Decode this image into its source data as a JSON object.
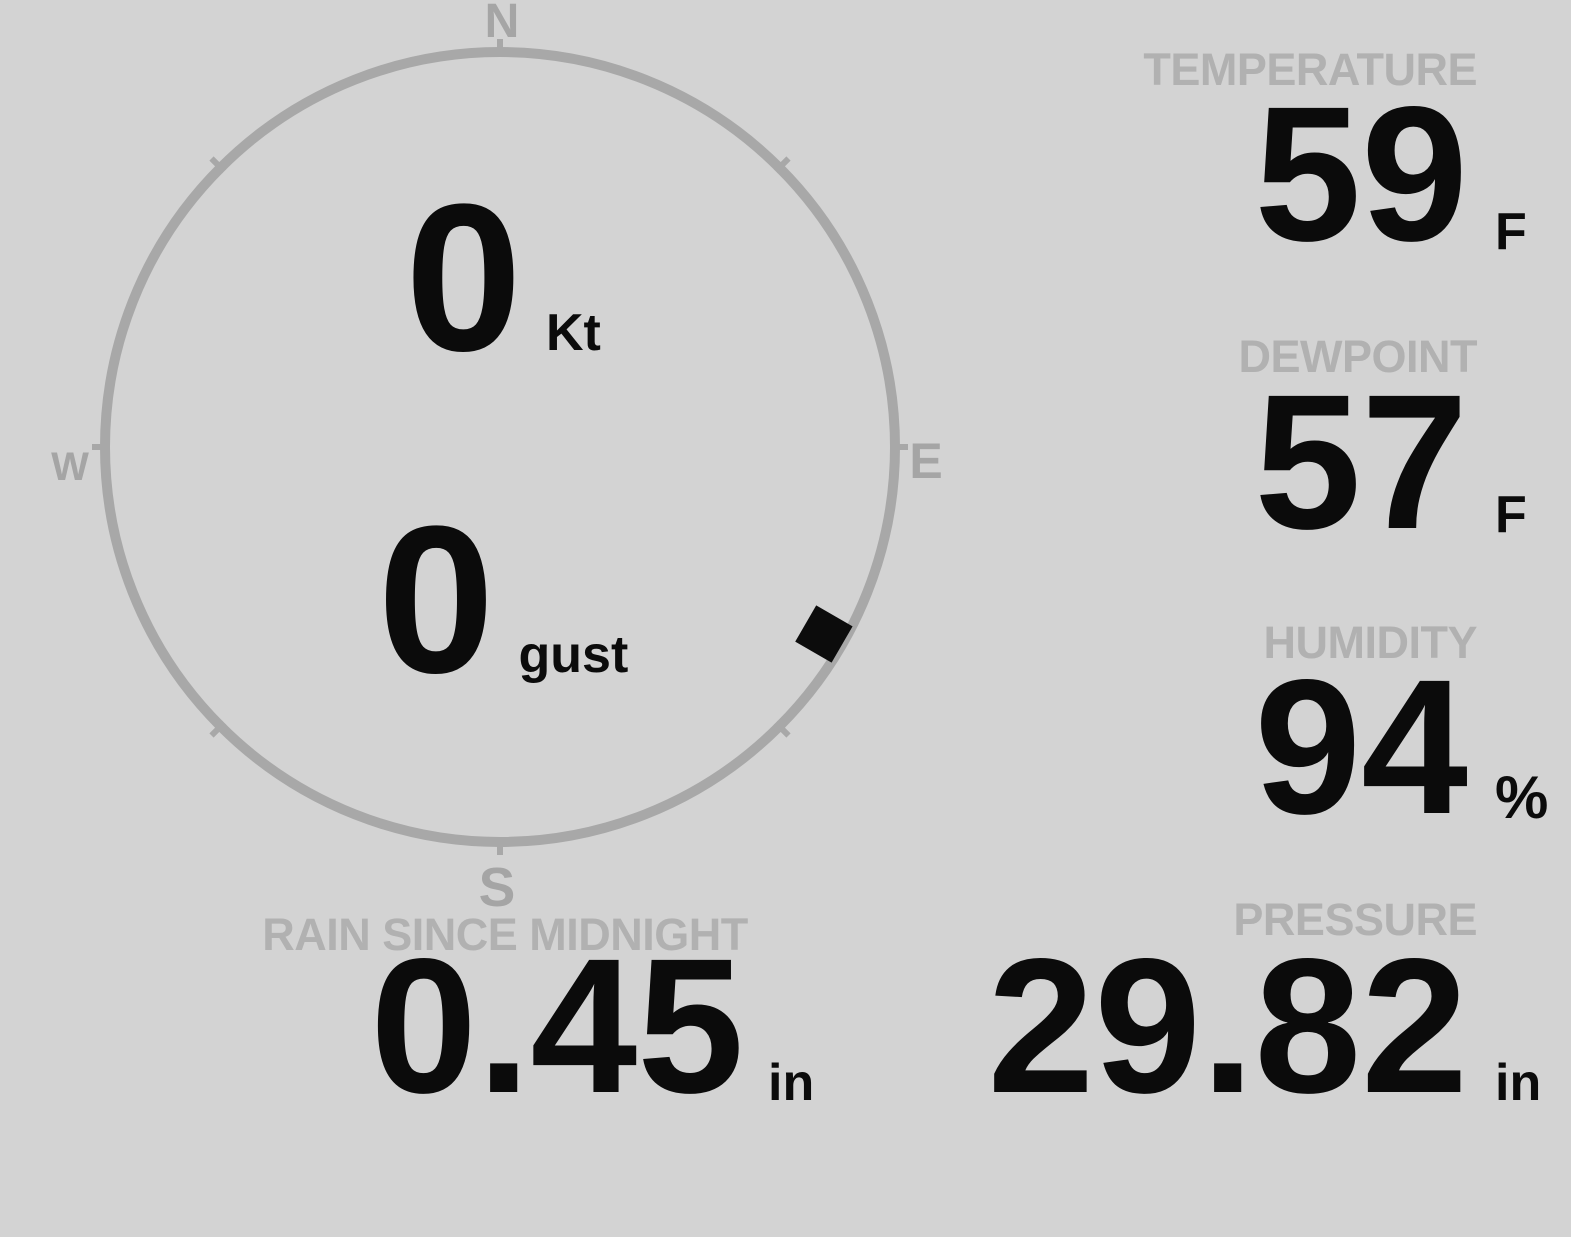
{
  "colors": {
    "background": "#d3d3d3",
    "ring": "#a8a8a8",
    "compass_letter": "#a5a5a5",
    "section_label": "#b1b1b1",
    "value_text": "#0b0b0b",
    "marker": "#0c0c0c"
  },
  "compass": {
    "directions": {
      "north": "N",
      "east": "E",
      "south": "S",
      "west": "W"
    },
    "wind": {
      "speed": "0",
      "speed_unit": "Kt",
      "gust": "0",
      "gust_unit": "gust",
      "direction_deg": 120
    }
  },
  "metrics": {
    "temperature": {
      "label": "TEMPERATURE",
      "value": "59",
      "unit": "F"
    },
    "dewpoint": {
      "label": "DEWPOINT",
      "value": "57",
      "unit": "F"
    },
    "humidity": {
      "label": "HUMIDITY",
      "value": "94",
      "unit": "%"
    },
    "rain": {
      "label": "RAIN SINCE MIDNIGHT",
      "value": "0.45",
      "unit": "in"
    },
    "pressure": {
      "label": "PRESSURE",
      "value": "29.82",
      "unit": "in"
    }
  }
}
